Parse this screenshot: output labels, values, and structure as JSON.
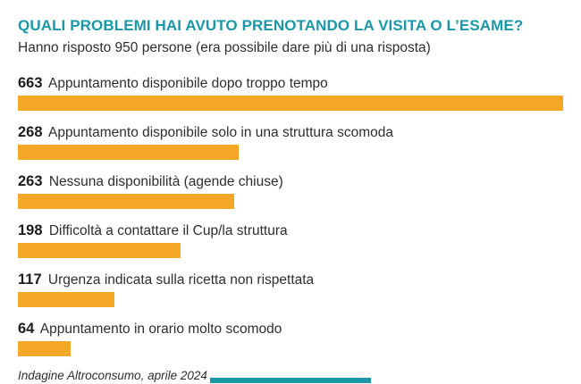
{
  "header": {
    "title": "QUALI PROBLEMI HAI AVUTO PRENOTANDO LA VISITA O L’ESAME?",
    "subtitle": "Hanno risposto 950 persone (era possibile dare più di una risposta)"
  },
  "footer": {
    "source": "Indagine Altroconsumo, aprile 2024"
  },
  "colors": {
    "accent_teal": "#1a98a7",
    "bar_orange": "#f5a726",
    "text": "#2e2e2e"
  },
  "chart_data": {
    "type": "bar",
    "orientation": "horizontal",
    "title": "QUALI PROBLEMI HAI AVUTO PRENOTANDO LA VISITA O L’ESAME?",
    "subtitle": "Hanno risposto 950 persone (era possibile dare più di una risposta)",
    "total_respondents": 950,
    "categories": [
      "Appuntamento disponibile dopo troppo tempo",
      "Appuntamento disponibile solo in una struttura scomoda",
      "Nessuna disponibilità (agende chiuse)",
      "Difficoltà a contattare il Cup/la struttura",
      "Urgenza indicata sulla ricetta non rispettata",
      "Appuntamento in orario molto scomodo"
    ],
    "values": [
      663,
      268,
      263,
      198,
      117,
      64
    ],
    "max_value": 663,
    "value_labels_shown": true,
    "grid": false,
    "legend": "none",
    "bar_color": "#f5a726",
    "source": "Indagine Altroconsumo, aprile 2024"
  }
}
